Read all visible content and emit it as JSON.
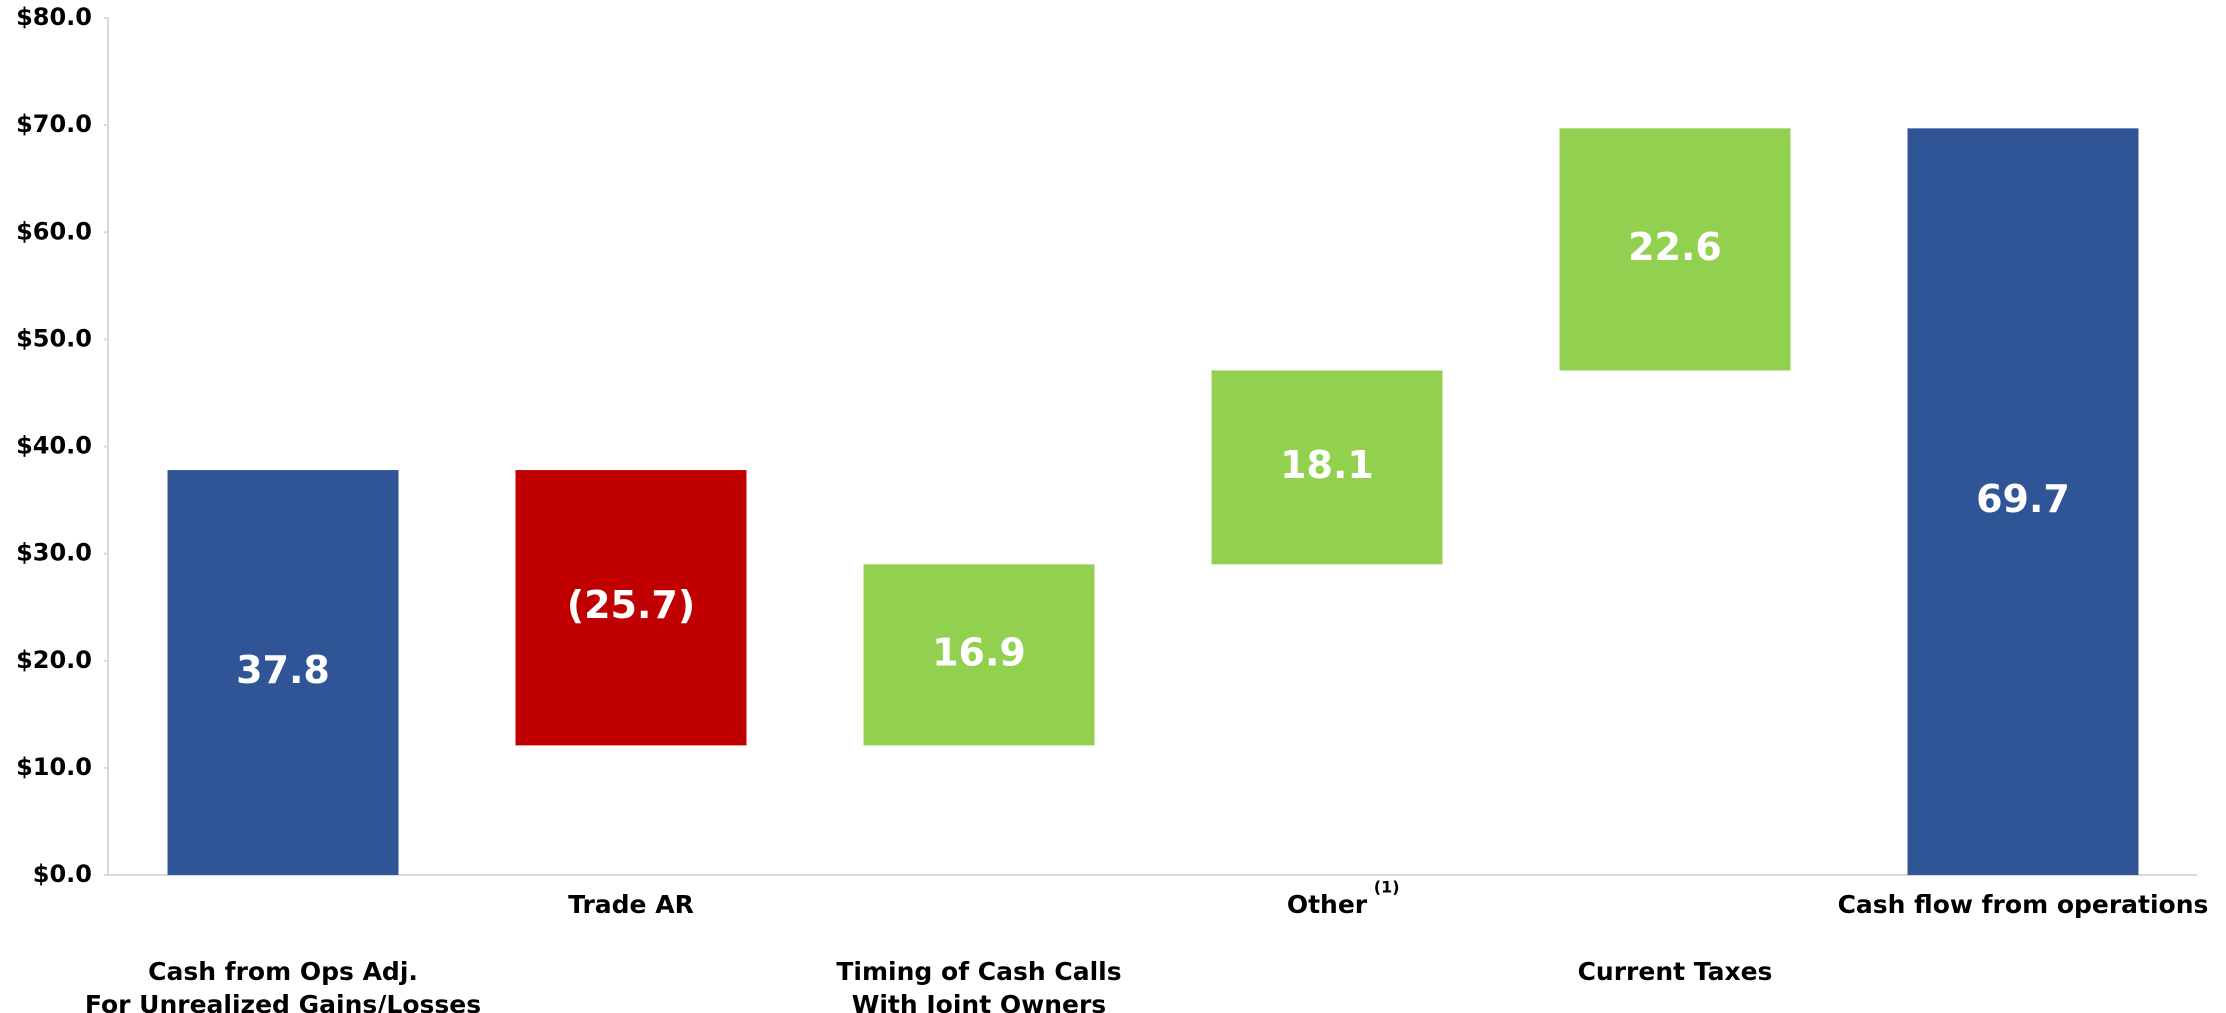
{
  "chart_data": {
    "type": "waterfall",
    "categories": [
      [
        "Cash from Ops Adj.",
        "For Unrealized Gains/Losses"
      ],
      [
        "Trade AR"
      ],
      [
        "Timing of Cash Calls",
        "With Joint Owners"
      ],
      [
        "Other"
      ],
      [
        "Current Taxes"
      ],
      [
        "Cash flow from operations"
      ]
    ],
    "category_notes": [
      null,
      null,
      null,
      "(1)",
      null,
      null
    ],
    "values": [
      37.8,
      -25.7,
      16.9,
      18.1,
      22.6,
      69.7
    ],
    "value_labels": [
      "37.8",
      "(25.7)",
      "16.9",
      "18.1",
      "22.6",
      "69.7"
    ],
    "bar_kinds": [
      "total",
      "delta",
      "delta",
      "delta",
      "delta",
      "total"
    ],
    "colors": [
      "#2f5597",
      "#c00000",
      "#92d050",
      "#92d050",
      "#92d050",
      "#2f5597"
    ],
    "ylim": [
      0,
      80
    ],
    "yticks": [
      {
        "value": 0,
        "label": "$0.0"
      },
      {
        "value": 10,
        "label": "$10.0"
      },
      {
        "value": 20,
        "label": "$20.0"
      },
      {
        "value": 30,
        "label": "$30.0"
      },
      {
        "value": 40,
        "label": "$40.0"
      },
      {
        "value": 50,
        "label": "$50.0"
      },
      {
        "value": 60,
        "label": "$60.0"
      },
      {
        "value": 70,
        "label": "$70.0"
      },
      {
        "value": 80,
        "label": "$80.0"
      }
    ]
  }
}
